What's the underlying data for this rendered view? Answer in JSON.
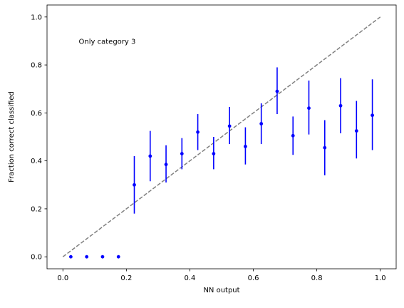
{
  "chart_data": {
    "type": "scatter",
    "title": "",
    "xlabel": "NN output",
    "ylabel": "Fraction correct classified",
    "xlim": [
      -0.05,
      1.05
    ],
    "ylim": [
      -0.05,
      1.05
    ],
    "xticks": [
      "0.0",
      "0.2",
      "0.4",
      "0.6",
      "0.8",
      "1.0"
    ],
    "yticks": [
      "0.0",
      "0.2",
      "0.4",
      "0.6",
      "0.8",
      "1.0"
    ],
    "grid": false,
    "legend": "none",
    "annotation": "Only category 3",
    "reference_line": {
      "x": [
        0.0,
        1.0
      ],
      "y": [
        0.0,
        1.0
      ],
      "style": "dashed",
      "color": "#808080"
    },
    "series": [
      {
        "color": "#0000ff",
        "x": [
          0.025,
          0.075,
          0.125,
          0.175,
          0.225,
          0.275,
          0.325,
          0.375,
          0.425,
          0.475,
          0.525,
          0.575,
          0.625,
          0.675,
          0.725,
          0.775,
          0.825,
          0.875,
          0.925,
          0.975
        ],
        "y": [
          0.0,
          0.0,
          0.0,
          0.0,
          0.3,
          0.42,
          0.385,
          0.43,
          0.52,
          0.43,
          0.545,
          0.46,
          0.555,
          0.69,
          0.505,
          0.62,
          0.455,
          0.63,
          0.525,
          0.59
        ],
        "yerr_low": [
          null,
          null,
          null,
          null,
          0.18,
          0.315,
          0.31,
          0.365,
          0.445,
          0.365,
          0.47,
          0.385,
          0.47,
          0.595,
          0.425,
          0.51,
          0.34,
          0.515,
          0.41,
          0.445
        ],
        "yerr_high": [
          null,
          null,
          null,
          null,
          0.42,
          0.525,
          0.465,
          0.495,
          0.595,
          0.5,
          0.625,
          0.54,
          0.64,
          0.79,
          0.585,
          0.735,
          0.57,
          0.745,
          0.65,
          0.74
        ]
      }
    ]
  }
}
